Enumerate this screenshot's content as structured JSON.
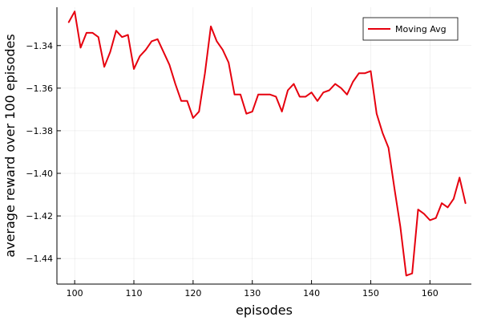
{
  "chart_data": {
    "type": "line",
    "xlabel": "episodes",
    "ylabel": "average reward over 100 episodes",
    "xlim": [
      97,
      167
    ],
    "ylim": [
      -1.452,
      -1.322
    ],
    "xticks": [
      100,
      110,
      120,
      130,
      140,
      150,
      160
    ],
    "yticks": [
      -1.34,
      -1.36,
      -1.38,
      -1.4,
      -1.42,
      -1.44
    ],
    "xtick_labels": [
      "100",
      "110",
      "120",
      "130",
      "140",
      "150",
      "160"
    ],
    "ytick_labels": [
      "−1.34",
      "−1.36",
      "−1.38",
      "−1.40",
      "−1.42",
      "−1.44"
    ],
    "grid": true,
    "legend_position": "top-right",
    "series": [
      {
        "name": "Moving Avg",
        "color": "#e6000e",
        "x": [
          99,
          100,
          101,
          102,
          103,
          104,
          105,
          106,
          107,
          108,
          109,
          110,
          111,
          112,
          113,
          114,
          115,
          116,
          117,
          118,
          119,
          120,
          121,
          122,
          123,
          124,
          125,
          126,
          127,
          128,
          129,
          130,
          131,
          132,
          133,
          134,
          135,
          136,
          137,
          138,
          139,
          140,
          141,
          142,
          143,
          144,
          145,
          146,
          147,
          148,
          149,
          150,
          151,
          152,
          153,
          154,
          155,
          156,
          157,
          158,
          159,
          160,
          161,
          162,
          163,
          164,
          165,
          166
        ],
        "y": [
          -1.329,
          -1.324,
          -1.341,
          -1.334,
          -1.334,
          -1.336,
          -1.35,
          -1.343,
          -1.333,
          -1.336,
          -1.335,
          -1.351,
          -1.345,
          -1.342,
          -1.338,
          -1.337,
          -1.343,
          -1.349,
          -1.358,
          -1.366,
          -1.366,
          -1.374,
          -1.371,
          -1.353,
          -1.331,
          -1.338,
          -1.342,
          -1.348,
          -1.363,
          -1.363,
          -1.372,
          -1.371,
          -1.363,
          -1.363,
          -1.363,
          -1.364,
          -1.371,
          -1.361,
          -1.358,
          -1.364,
          -1.364,
          -1.362,
          -1.366,
          -1.362,
          -1.361,
          -1.358,
          -1.36,
          -1.363,
          -1.357,
          -1.353,
          -1.353,
          -1.352,
          -1.372,
          -1.381,
          -1.388,
          -1.407,
          -1.425,
          -1.448,
          -1.447,
          -1.417,
          -1.419,
          -1.422,
          -1.421,
          -1.414,
          -1.416,
          -1.412,
          -1.402,
          -1.414
        ]
      }
    ]
  }
}
